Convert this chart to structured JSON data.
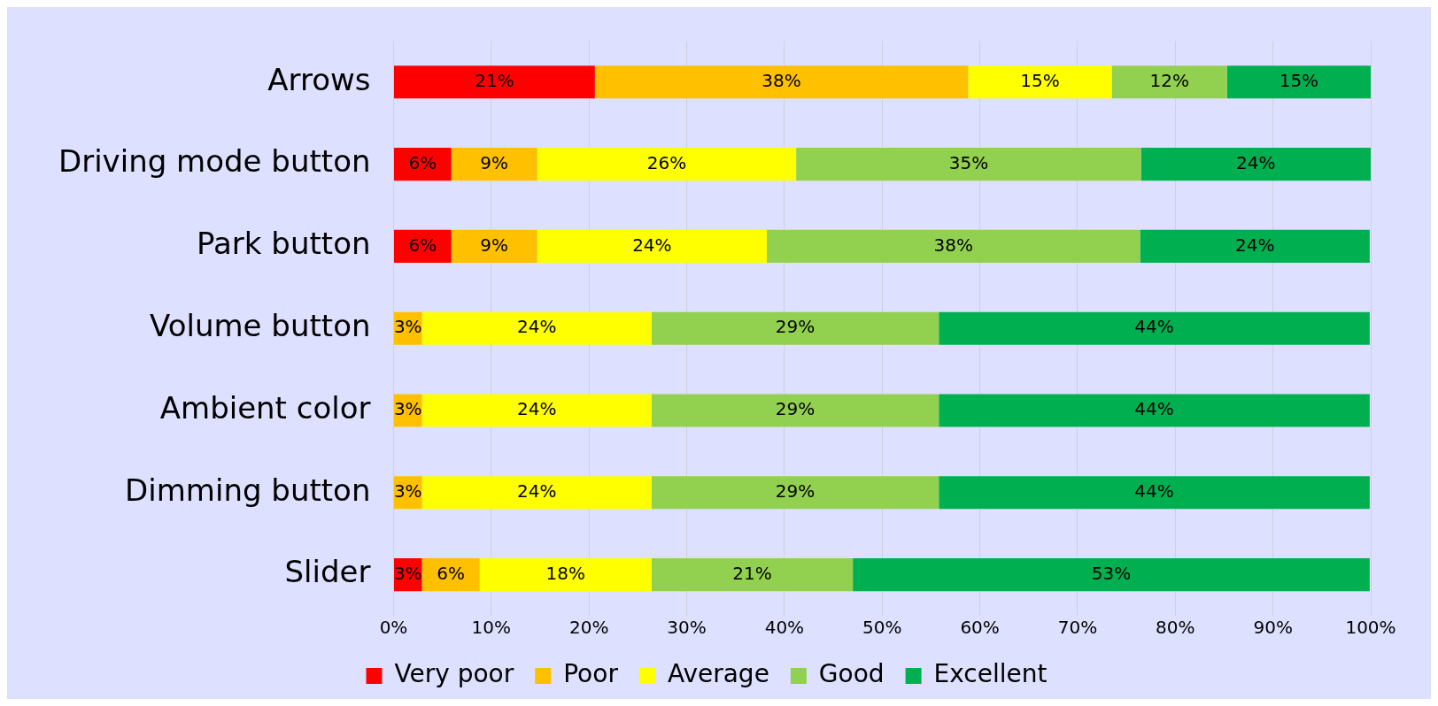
{
  "chart_data": {
    "type": "bar",
    "orientation": "horizontal",
    "stacked": true,
    "categories": [
      "Arrows",
      "Driving mode button",
      "Park button",
      "Volume button",
      "Ambient color",
      "Dimming button",
      "Slider"
    ],
    "series": [
      {
        "name": "Very poor",
        "color": "#ff0000",
        "values": [
          20.6,
          5.9,
          5.9,
          null,
          null,
          null,
          2.9
        ],
        "value_labels": [
          "21%",
          "6%",
          "6%",
          null,
          null,
          null,
          "3%"
        ]
      },
      {
        "name": "Poor",
        "color": "#ffc000",
        "values": [
          38.2,
          8.8,
          8.8,
          2.9,
          2.9,
          2.9,
          5.9
        ],
        "value_labels": [
          "38%",
          "9%",
          "9%",
          "3%",
          "3%",
          "3%",
          "6%"
        ]
      },
      {
        "name": "Average",
        "color": "#ffff00",
        "values": [
          14.7,
          26.5,
          23.5,
          23.5,
          23.5,
          23.5,
          17.6
        ],
        "value_labels": [
          "15%",
          "26%",
          "24%",
          "24%",
          "24%",
          "24%",
          "18%"
        ]
      },
      {
        "name": "Good",
        "color": "#92d050",
        "values": [
          11.8,
          35.3,
          38.2,
          29.4,
          29.4,
          29.4,
          20.6
        ],
        "value_labels": [
          "12%",
          "35%",
          "38%",
          "29%",
          "29%",
          "29%",
          "21%"
        ]
      },
      {
        "name": "Excellent",
        "color": "#00b050",
        "values": [
          14.7,
          23.5,
          23.5,
          44.1,
          44.1,
          44.1,
          52.9
        ],
        "value_labels": [
          "15%",
          "24%",
          "24%",
          "44%",
          "44%",
          "44%",
          "53%"
        ]
      }
    ],
    "xlim": [
      0,
      100
    ],
    "xticks": [
      {
        "value": 0,
        "label": "0%"
      },
      {
        "value": 10,
        "label": "10%"
      },
      {
        "value": 20,
        "label": "20%"
      },
      {
        "value": 30,
        "label": "30%"
      },
      {
        "value": 40,
        "label": "40%"
      },
      {
        "value": 50,
        "label": "50%"
      },
      {
        "value": 60,
        "label": "60%"
      },
      {
        "value": 70,
        "label": "70%"
      },
      {
        "value": 80,
        "label": "80%"
      },
      {
        "value": 90,
        "label": "90%"
      },
      {
        "value": 100,
        "label": "100%"
      }
    ],
    "grid": "x",
    "legend": "bottom"
  }
}
